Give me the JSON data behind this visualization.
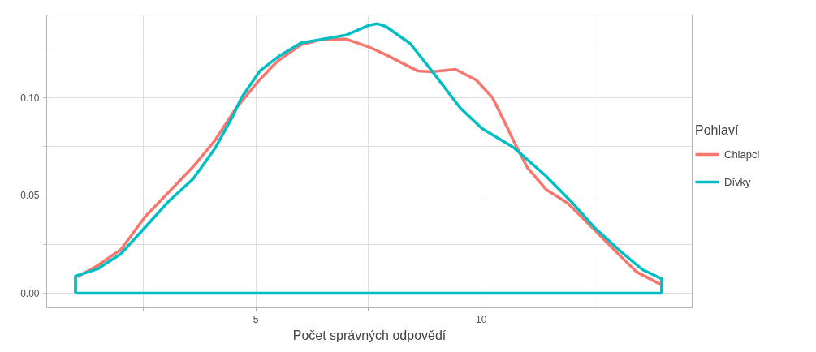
{
  "chart_data": {
    "type": "line",
    "xlabel": "Počet správných odpovědí",
    "legend_title": "Pohlaví",
    "legend": "right",
    "grid": true,
    "xlim": [
      0.36,
      14.68
    ],
    "ylim": [
      -0.0075,
      0.1423
    ],
    "xticks": [
      {
        "value": 2.5,
        "label": null
      },
      5,
      {
        "value": 7.5,
        "label": null
      },
      10,
      {
        "value": 12.5,
        "label": null
      }
    ],
    "yticks": [
      "0.00",
      {
        "value": 0.025,
        "label": null
      },
      {
        "value": 0.05,
        "label": "0.05"
      },
      {
        "value": 0.075,
        "label": null
      },
      {
        "value": 0.1,
        "label": "0.10"
      },
      {
        "value": 0.125,
        "label": null
      }
    ],
    "series": [
      {
        "name": "Chlapci",
        "color": "#f8766d",
        "x": [
          1.0,
          1.0,
          1.07,
          1.48,
          2.01,
          2.54,
          3.08,
          3.61,
          4.09,
          4.56,
          5.04,
          5.39,
          5.5,
          6.0,
          6.5,
          7.0,
          7.5,
          7.88,
          8.59,
          8.9,
          9.43,
          9.89,
          10.25,
          10.5,
          10.78,
          11.03,
          11.44,
          11.92,
          12.51,
          12.99,
          13.45,
          13.97,
          14.0,
          14.0
        ],
        "values": [
          0.0,
          0.0083,
          0.0087,
          0.014,
          0.0224,
          0.039,
          0.052,
          0.0647,
          0.078,
          0.0946,
          0.108,
          0.1166,
          0.119,
          0.127,
          0.13,
          0.13,
          0.126,
          0.122,
          0.1137,
          0.1133,
          0.1145,
          0.109,
          0.1,
          0.0884,
          0.075,
          0.064,
          0.053,
          0.046,
          0.0324,
          0.0212,
          0.0108,
          0.0046,
          0.004,
          0.0
        ]
      },
      {
        "name": "Dívky",
        "color": "#00bfc4",
        "x": [
          1.0,
          1.0,
          1.5,
          2.0,
          2.54,
          3.08,
          3.61,
          4.09,
          4.5,
          4.68,
          5.09,
          5.5,
          6.0,
          6.5,
          7.0,
          7.5,
          7.7,
          7.88,
          8.42,
          8.95,
          9.54,
          10.02,
          10.73,
          11.44,
          12.03,
          12.51,
          13.1,
          13.58,
          13.99,
          14.0,
          14.0
        ],
        "values": [
          0.0,
          0.0087,
          0.0125,
          0.02,
          0.0336,
          0.0473,
          0.0585,
          0.0739,
          0.091,
          0.1,
          0.1137,
          0.121,
          0.128,
          0.13,
          0.132,
          0.137,
          0.1378,
          0.1365,
          0.1278,
          0.1124,
          0.0946,
          0.0842,
          0.0743,
          0.0598,
          0.046,
          0.0336,
          0.0212,
          0.012,
          0.0075,
          0.0075,
          0.0
        ]
      },
      {
        "color": "#00bfc4",
        "x": [
          14.0,
          1.0
        ],
        "values": [
          0.0,
          0.0
        ]
      }
    ]
  }
}
